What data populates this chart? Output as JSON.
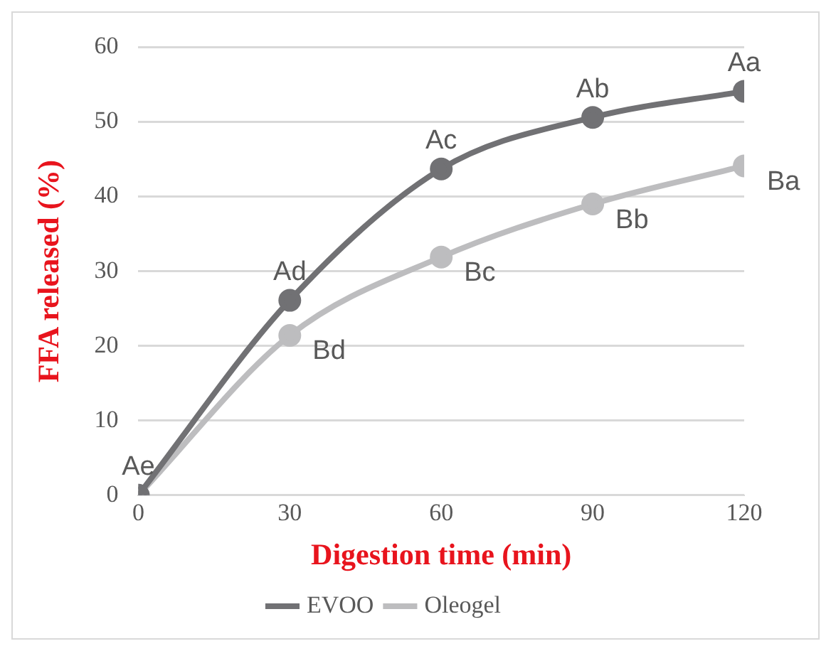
{
  "chart_data": {
    "type": "line",
    "xlabel": "Digestion time (min)",
    "ylabel": "FFA released (%)",
    "x": [
      0,
      30,
      60,
      90,
      120
    ],
    "series": [
      {
        "name": "EVOO",
        "color": "#717174",
        "values": [
          0,
          26.1,
          43.7,
          50.6,
          54.1
        ]
      },
      {
        "name": "Oleogel",
        "color": "#bdbdbf",
        "values": [
          0,
          21.4,
          31.9,
          39.0,
          44.1
        ]
      }
    ],
    "xlim": [
      0,
      120
    ],
    "xticks": [
      0,
      30,
      60,
      90,
      120
    ],
    "ylim": [
      0,
      60
    ],
    "yticks": [
      0,
      10,
      20,
      30,
      40,
      50,
      60
    ],
    "grid": "y",
    "legend": "bottom",
    "marker": "circle",
    "line_style": "solid",
    "annotations": [
      {
        "text": "Ae",
        "x": 0,
        "y": 0
      },
      {
        "text": "Ad",
        "x": 30,
        "y": 26.1
      },
      {
        "text": "Ac",
        "x": 60,
        "y": 43.7
      },
      {
        "text": "Ab",
        "x": 90,
        "y": 50.6
      },
      {
        "text": "Aa",
        "x": 120,
        "y": 54.1
      },
      {
        "text": "Bd",
        "x": 30,
        "y": 21.4
      },
      {
        "text": "Bc",
        "x": 60,
        "y": 31.9
      },
      {
        "text": "Bb",
        "x": 90,
        "y": 39.0
      },
      {
        "text": "Ba",
        "x": 120,
        "y": 44.1
      }
    ]
  }
}
